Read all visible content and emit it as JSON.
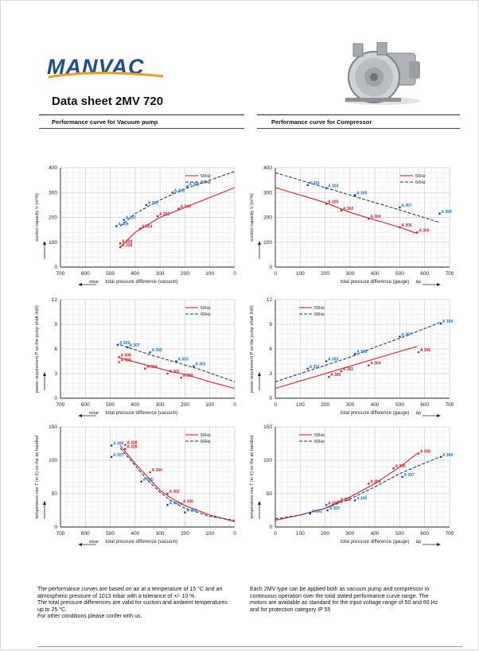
{
  "header": {
    "brand": "MANVAC",
    "title": "Data sheet 2MV 720"
  },
  "sections": {
    "vacuum": "Performance curve for Vacuum pump",
    "compressor": "Performance curve for Compressor"
  },
  "notes": {
    "left": [
      "The performance curves are based on air at a temperature of 15 °C and an",
      "atmospheric pressure of 1013 mbar with a tolerance of +/- 10 %.",
      "The total pressure differences are valid for suction and ambient temperatures",
      "up to 25 °C.",
      "For other conditions please confer with us."
    ],
    "right": [
      "Each 2MV type can be applied both as vacuum pump and compressor in",
      "continuous operation over the total stated performance curve range. The",
      "motors are available as standard for the input voltage range of 50 and 60 Hz",
      "and for protection category IP 55"
    ]
  },
  "colors": {
    "hz50": "#d0202c",
    "hz60": "#1f3e6e",
    "label60": "#1a73c8"
  },
  "chart_data": [
    {
      "id": "vac-flow",
      "type": "line",
      "reversed_x": true,
      "xlabel": "total pressure difference (vacuum)",
      "xunit": "mbar",
      "ylabel": "suction capacity V (m³/h)",
      "xlim": [
        700,
        0
      ],
      "ylim": [
        0,
        400
      ],
      "xticks": [
        700,
        600,
        500,
        400,
        300,
        200,
        100,
        0
      ],
      "yticks": [
        0,
        100,
        200,
        300,
        400
      ],
      "legend": "top-right",
      "series": [
        {
          "name": "50Hz",
          "x": [
            460,
            400,
            300,
            200,
            100,
            0
          ],
          "y": [
            80,
            140,
            200,
            240,
            280,
            320
          ],
          "labels": [
            {
              "x": 460,
              "y": 95,
              "t": "A 308"
            },
            {
              "x": 460,
              "y": 80,
              "t": "A 328"
            },
            {
              "x": 380,
              "y": 155,
              "t": "A 304"
            },
            {
              "x": 310,
              "y": 205,
              "t": "A 302"
            },
            {
              "x": 225,
              "y": 235,
              "t": "A 300"
            }
          ]
        },
        {
          "name": "60Hz",
          "x": [
            460,
            400,
            300,
            200,
            100,
            0
          ],
          "y": [
            165,
            215,
            270,
            315,
            350,
            385
          ],
          "labels": [
            {
              "x": 475,
              "y": 165,
              "t": "A 309"
            },
            {
              "x": 445,
              "y": 190,
              "t": "A 307"
            },
            {
              "x": 355,
              "y": 250,
              "t": "A 305"
            },
            {
              "x": 250,
              "y": 300,
              "t": "A 303"
            },
            {
              "x": 190,
              "y": 325,
              "t": "A 301"
            }
          ]
        }
      ]
    },
    {
      "id": "comp-flow",
      "type": "line",
      "xlabel": "total pressure difference (gauge)",
      "xunit": "Δp",
      "ylabel": "suction capacity V (m³/h)",
      "xlim": [
        0,
        700
      ],
      "ylim": [
        0,
        400
      ],
      "xticks": [
        0,
        100,
        200,
        300,
        400,
        500,
        600,
        700
      ],
      "yticks": [
        0,
        100,
        200,
        300,
        400
      ],
      "legend": "top-right",
      "series": [
        {
          "name": "50Hz",
          "x": [
            0,
            100,
            200,
            300,
            400,
            500,
            570
          ],
          "y": [
            320,
            290,
            260,
            220,
            190,
            160,
            135
          ],
          "labels": [
            {
              "x": 205,
              "y": 255,
              "t": "A 300"
            },
            {
              "x": 265,
              "y": 228,
              "t": "A 302"
            },
            {
              "x": 375,
              "y": 195,
              "t": "A 304"
            },
            {
              "x": 500,
              "y": 160,
              "t": "A 306"
            },
            {
              "x": 570,
              "y": 140,
              "t": "A 308"
            }
          ]
        },
        {
          "name": "60Hz",
          "x": [
            0,
            100,
            200,
            300,
            400,
            500,
            660
          ],
          "y": [
            380,
            350,
            320,
            290,
            260,
            230,
            180
          ],
          "labels": [
            {
              "x": 130,
              "y": 330,
              "t": "A 301"
            },
            {
              "x": 205,
              "y": 318,
              "t": "A 303"
            },
            {
              "x": 320,
              "y": 290,
              "t": "A 305"
            },
            {
              "x": 500,
              "y": 240,
              "t": "A 307"
            },
            {
              "x": 660,
              "y": 215,
              "t": "A 309"
            }
          ]
        }
      ]
    },
    {
      "id": "vac-power",
      "type": "line",
      "reversed_x": true,
      "xlabel": "total pressure difference (vacuum)",
      "xunit": "mbar",
      "ylabel": "power requirement P on the pump shaft (kW)",
      "xlim": [
        700,
        0
      ],
      "ylim": [
        0,
        12
      ],
      "xticks": [
        700,
        600,
        500,
        400,
        300,
        200,
        100,
        0
      ],
      "yticks": [
        0,
        3,
        6,
        9,
        12
      ],
      "legend": "top-right",
      "series": [
        {
          "name": "50Hz",
          "x": [
            460,
            350,
            250,
            200,
            100,
            0
          ],
          "y": [
            4.9,
            4.0,
            3.2,
            2.9,
            2.0,
            1.2
          ],
          "labels": [
            {
              "x": 465,
              "y": 5.0,
              "t": "A 308"
            },
            {
              "x": 465,
              "y": 4.4,
              "t": "A 328"
            },
            {
              "x": 360,
              "y": 3.6,
              "t": "A 304"
            },
            {
              "x": 270,
              "y": 3.0,
              "t": "A 302"
            },
            {
              "x": 215,
              "y": 2.5,
              "t": "A 300"
            }
          ]
        },
        {
          "name": "60Hz",
          "x": [
            460,
            350,
            250,
            150,
            0
          ],
          "y": [
            6.5,
            5.4,
            4.5,
            3.6,
            2.0
          ],
          "labels": [
            {
              "x": 470,
              "y": 6.5,
              "t": "A 309"
            },
            {
              "x": 430,
              "y": 6.2,
              "t": "A 307"
            },
            {
              "x": 340,
              "y": 5.6,
              "t": "A 305"
            },
            {
              "x": 235,
              "y": 4.5,
              "t": "A 303"
            },
            {
              "x": 165,
              "y": 3.9,
              "t": "A 301"
            }
          ]
        }
      ]
    },
    {
      "id": "comp-power",
      "type": "line",
      "xlabel": "total pressure difference (gauge)",
      "xunit": "Δp",
      "ylabel": "power requirement P on the pump shaft (kW)",
      "xlim": [
        0,
        700
      ],
      "ylim": [
        0,
        12
      ],
      "xticks": [
        0,
        100,
        200,
        300,
        400,
        500,
        600,
        700
      ],
      "yticks": [
        0,
        3,
        6,
        9,
        12
      ],
      "legend": "top-left",
      "series": [
        {
          "name": "50Hz",
          "x": [
            0,
            100,
            200,
            300,
            400,
            500,
            570
          ],
          "y": [
            1.2,
            2.1,
            3.0,
            3.9,
            4.8,
            5.7,
            6.3
          ],
          "labels": [
            {
              "x": 215,
              "y": 2.6,
              "t": "A 300"
            },
            {
              "x": 265,
              "y": 3.3,
              "t": "A 302"
            },
            {
              "x": 375,
              "y": 4.0,
              "t": "A 304"
            },
            {
              "x": 575,
              "y": 5.6,
              "t": "A 306"
            }
          ]
        },
        {
          "name": "60Hz",
          "x": [
            0,
            100,
            200,
            300,
            400,
            500,
            660
          ],
          "y": [
            2.0,
            3.0,
            4.0,
            5.0,
            6.2,
            7.3,
            9.2
          ],
          "labels": [
            {
              "x": 130,
              "y": 3.6,
              "t": "A 301"
            },
            {
              "x": 205,
              "y": 4.5,
              "t": "A 303"
            },
            {
              "x": 320,
              "y": 5.4,
              "t": "A 305"
            },
            {
              "x": 500,
              "y": 7.5,
              "t": "A 307"
            },
            {
              "x": 665,
              "y": 9.1,
              "t": "A 309"
            }
          ]
        }
      ]
    },
    {
      "id": "vac-temp",
      "type": "line",
      "reversed_x": true,
      "xlabel": "total pressure difference (vacuum)",
      "xunit": "mbar",
      "ylabel": "temperature rise T (in K) on the air handled",
      "xlim": [
        700,
        0
      ],
      "ylim": [
        0,
        150
      ],
      "xticks": [
        700,
        600,
        500,
        400,
        300,
        200,
        100,
        0
      ],
      "yticks": [
        0,
        50,
        100,
        150
      ],
      "legend": "top-right",
      "series": [
        {
          "name": "50Hz",
          "x": [
            460,
            400,
            350,
            300,
            250,
            200,
            100,
            0
          ],
          "y": [
            122,
            95,
            75,
            55,
            42,
            32,
            18,
            8
          ],
          "labels": [
            {
              "x": 440,
              "y": 123,
              "t": "A 308"
            },
            {
              "x": 440,
              "y": 117,
              "t": "A 328"
            },
            {
              "x": 340,
              "y": 82,
              "t": "A 304"
            },
            {
              "x": 270,
              "y": 50,
              "t": "A 302"
            },
            {
              "x": 215,
              "y": 35,
              "t": "A 300"
            }
          ]
        },
        {
          "name": "60Hz",
          "x": [
            460,
            400,
            350,
            300,
            250,
            200,
            100,
            0
          ],
          "y": [
            118,
            92,
            70,
            52,
            38,
            28,
            16,
            10
          ],
          "labels": [
            {
              "x": 495,
              "y": 122,
              "t": "A 309"
            },
            {
              "x": 495,
              "y": 105,
              "t": "A 307"
            },
            {
              "x": 375,
              "y": 68,
              "t": "A 305"
            },
            {
              "x": 270,
              "y": 33,
              "t": "A 303"
            },
            {
              "x": 200,
              "y": 22,
              "t": "A 301"
            }
          ]
        }
      ]
    },
    {
      "id": "comp-temp",
      "type": "line",
      "xlabel": "total pressure difference (gauge)",
      "xunit": "Δp",
      "ylabel": "temperature rise T (in K) on the air handled",
      "xlim": [
        0,
        700
      ],
      "ylim": [
        0,
        150
      ],
      "xticks": [
        0,
        100,
        200,
        300,
        400,
        500,
        600,
        700
      ],
      "yticks": [
        0,
        50,
        100,
        150
      ],
      "legend": "top-left",
      "series": [
        {
          "name": "50Hz",
          "x": [
            0,
            100,
            200,
            300,
            400,
            500,
            570
          ],
          "y": [
            10,
            18,
            28,
            45,
            65,
            90,
            110
          ],
          "labels": [
            {
              "x": 205,
              "y": 33,
              "t": "A 300"
            },
            {
              "x": 255,
              "y": 38,
              "t": "A 302"
            },
            {
              "x": 375,
              "y": 65,
              "t": "A 304"
            },
            {
              "x": 475,
              "y": 88,
              "t": "A 306"
            },
            {
              "x": 575,
              "y": 110,
              "t": "A 308"
            }
          ]
        },
        {
          "name": "60Hz",
          "x": [
            0,
            100,
            200,
            300,
            400,
            500,
            660
          ],
          "y": [
            12,
            18,
            28,
            42,
            60,
            80,
            105
          ],
          "labels": [
            {
              "x": 140,
              "y": 20,
              "t": "A 301"
            },
            {
              "x": 210,
              "y": 25,
              "t": "A 303"
            },
            {
              "x": 320,
              "y": 40,
              "t": "A 305"
            },
            {
              "x": 510,
              "y": 75,
              "t": "A 307"
            },
            {
              "x": 665,
              "y": 105,
              "t": "A 309"
            }
          ]
        }
      ]
    }
  ]
}
